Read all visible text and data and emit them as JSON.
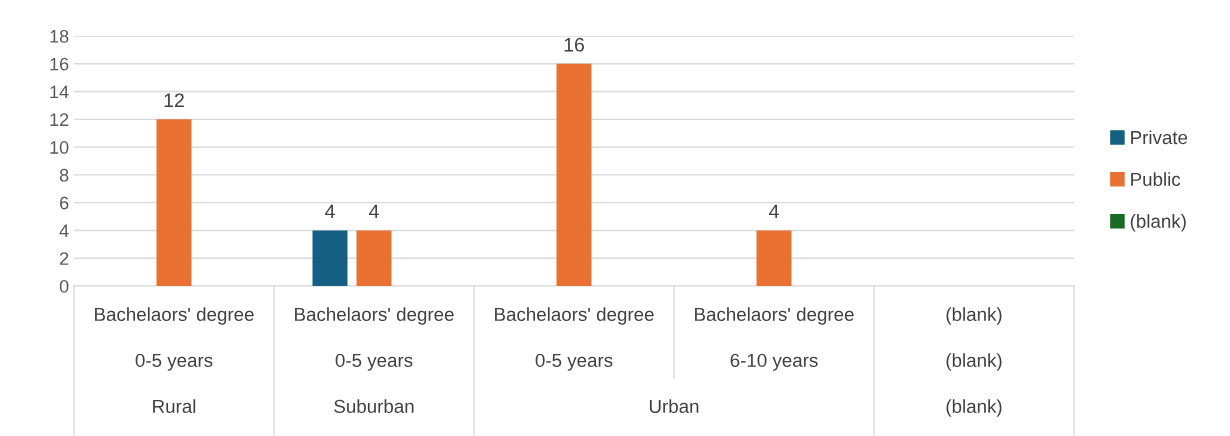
{
  "chart_data": {
    "type": "bar",
    "categories": [
      "Bachelaors' degree",
      "Bachelaors' degree",
      "Bachelaors' degree",
      "Bachelaors' degree",
      "(blank)"
    ],
    "series": [
      {
        "name": "Private",
        "color": "#156082",
        "values": [
          null,
          4,
          null,
          null,
          null
        ]
      },
      {
        "name": "Public",
        "color": "#e97132",
        "values": [
          12,
          4,
          16,
          4,
          null
        ]
      },
      {
        "name": "(blank)",
        "color": "#196b24",
        "values": [
          null,
          null,
          null,
          null,
          null
        ]
      }
    ],
    "annotations": [
      "0-5 years",
      "0-5 years",
      "0-5 years",
      "6-10 years",
      "(blank)",
      "Rural",
      "Suburban",
      "Urban",
      "(blank)"
    ],
    "ylim": [
      0,
      18
    ],
    "yticks": [
      0,
      2,
      4,
      6,
      8,
      10,
      12,
      14,
      16,
      18
    ],
    "grid": "y",
    "legend": "right",
    "data_labels": true
  }
}
